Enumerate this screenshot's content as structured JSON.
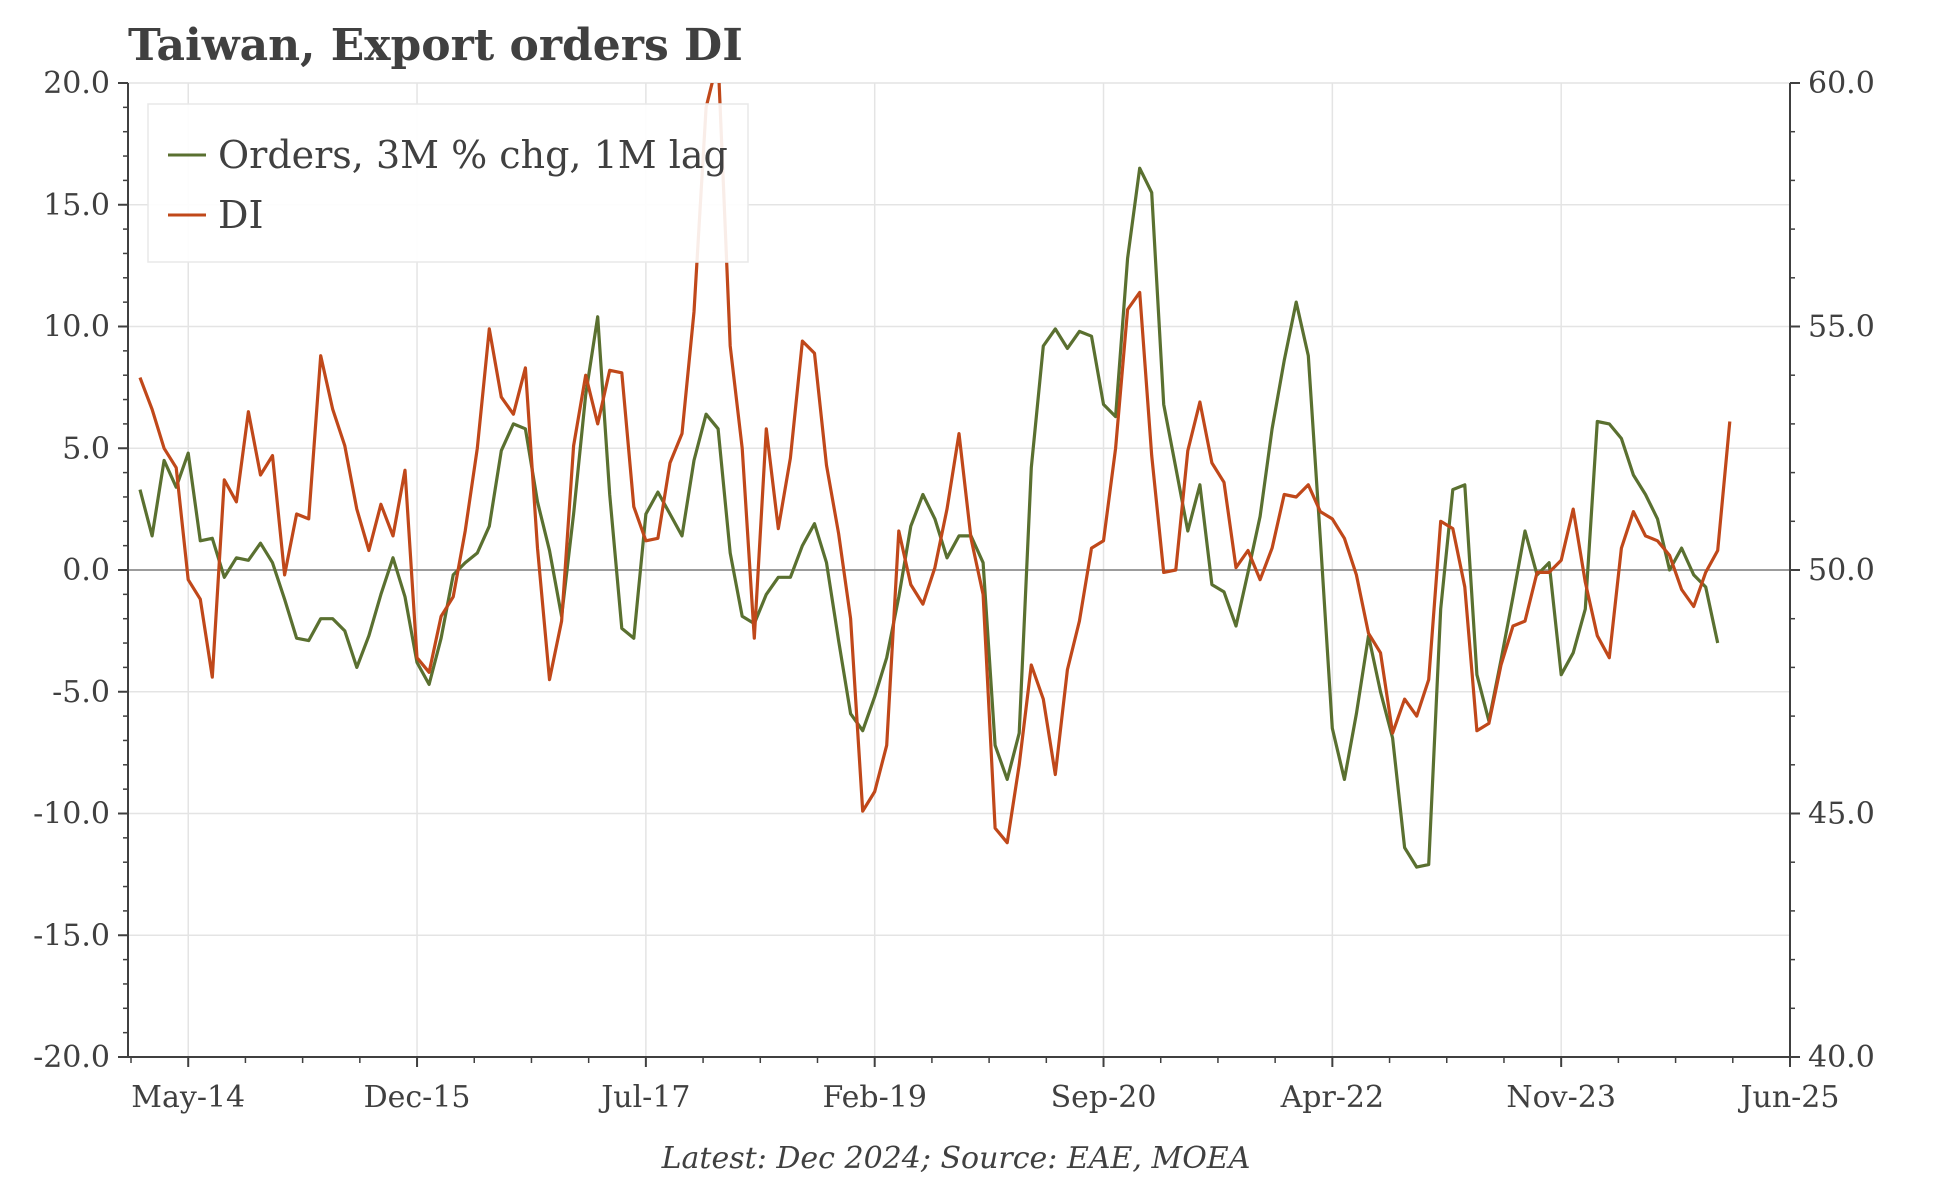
{
  "chart_data": {
    "type": "line",
    "title": "Taiwan, Export orders DI",
    "source_note": "Latest: Dec 2024; Source: EAE, MOEA",
    "x_start": "2013-12",
    "x_end": "2025-06",
    "x_tick_dates": [
      "2014-05",
      "2015-12",
      "2017-07",
      "2019-02",
      "2020-09",
      "2022-04",
      "2023-11",
      "2025-06"
    ],
    "x_tick_labels": [
      "May-14",
      "Dec-15",
      "Jul-17",
      "Feb-19",
      "Sep-20",
      "Apr-22",
      "Nov-23",
      "Jun-25"
    ],
    "y_left": {
      "lim": [
        -20,
        20
      ],
      "ticks": [
        -20,
        -15,
        -10,
        -5,
        0,
        5,
        10,
        15,
        20
      ],
      "tick_labels": [
        "-20.0",
        "-15.0",
        "-10.0",
        "-5.0",
        "0.0",
        "5.0",
        "10.0",
        "15.0",
        "20.0"
      ]
    },
    "y_right": {
      "lim": [
        40,
        60
      ],
      "ticks": [
        40,
        45,
        50,
        55,
        60
      ],
      "tick_labels": [
        "40.0",
        "45.0",
        "50.0",
        "55.0",
        "60.0"
      ]
    },
    "grid": true,
    "legend_position": "top-left",
    "colors": {
      "orders": "#5a7030",
      "di": "#c0481a",
      "zero_line": "#808080",
      "grid": "#e4e4e4"
    },
    "series": [
      {
        "name": "Orders, 3M % chg, 1M lag",
        "axis": "left",
        "start": "2014-01",
        "values": [
          3.3,
          1.4,
          4.5,
          3.4,
          4.8,
          1.2,
          1.3,
          -0.3,
          0.5,
          0.4,
          1.1,
          0.3,
          -1.2,
          -2.8,
          -2.9,
          -2.0,
          -2.0,
          -2.5,
          -4.0,
          -2.7,
          -1.0,
          0.5,
          -1.1,
          -3.8,
          -4.7,
          -2.8,
          -0.2,
          0.3,
          0.7,
          1.8,
          4.9,
          6.0,
          5.8,
          2.8,
          0.8,
          -1.9,
          2.3,
          7.2,
          10.4,
          3.1,
          -2.4,
          -2.8,
          2.3,
          3.2,
          2.3,
          1.4,
          4.5,
          6.4,
          5.8,
          0.7,
          -1.9,
          -2.2,
          -1.0,
          -0.3,
          -0.3,
          1.0,
          1.9,
          0.3,
          -2.9,
          -5.9,
          -6.6,
          -5.2,
          -3.6,
          -1.1,
          1.8,
          3.1,
          2.1,
          0.5,
          1.4,
          1.4,
          0.3,
          -7.2,
          -8.6,
          -6.7,
          4.2,
          9.2,
          9.9,
          9.1,
          9.8,
          9.6,
          6.8,
          6.3,
          12.8,
          16.5,
          15.5,
          6.8,
          4.2,
          1.6,
          3.5,
          -0.6,
          -0.9,
          -2.3,
          -0.1,
          2.2,
          5.8,
          8.6,
          11.0,
          8.8,
          1.3,
          -6.5,
          -8.6,
          -5.9,
          -2.7,
          -5.0,
          -6.9,
          -11.4,
          -12.2,
          -12.1,
          -1.6,
          3.3,
          3.5,
          -4.3,
          -6.2,
          -3.7,
          -1.1,
          1.6,
          -0.2,
          0.3,
          -4.3,
          -3.4,
          -1.6,
          6.1,
          6.0,
          5.4,
          3.9,
          3.1,
          2.1,
          0.0,
          0.9,
          -0.2,
          -0.7,
          -3.0
        ]
      },
      {
        "name": "DI",
        "axis": "right",
        "start": "2014-01",
        "values": [
          53.95,
          53.3,
          52.5,
          52.1,
          49.8,
          49.4,
          47.8,
          51.85,
          51.4,
          53.25,
          51.95,
          52.35,
          49.9,
          51.15,
          51.05,
          54.4,
          53.3,
          52.55,
          51.25,
          50.4,
          51.35,
          50.7,
          52.05,
          48.2,
          47.9,
          49.05,
          49.45,
          50.8,
          52.5,
          54.95,
          53.55,
          53.2,
          54.15,
          50.45,
          47.75,
          48.95,
          52.55,
          54.0,
          53.0,
          54.1,
          54.05,
          51.3,
          50.6,
          50.65,
          52.2,
          52.8,
          55.3,
          59.5,
          60.5,
          54.6,
          52.5,
          48.6,
          52.9,
          50.85,
          52.3,
          54.7,
          54.45,
          52.15,
          50.75,
          49.0,
          45.05,
          45.45,
          46.4,
          50.8,
          49.7,
          49.3,
          50.05,
          51.25,
          52.8,
          50.65,
          49.5,
          44.7,
          44.4,
          46.0,
          48.05,
          47.35,
          45.8,
          47.95,
          48.95,
          50.45,
          50.6,
          52.5,
          55.35,
          55.7,
          52.35,
          49.95,
          50.0,
          52.45,
          53.45,
          52.2,
          51.8,
          50.05,
          50.4,
          49.8,
          50.45,
          51.55,
          51.5,
          51.75,
          51.2,
          51.05,
          50.65,
          49.9,
          48.7,
          48.3,
          46.65,
          47.35,
          47.0,
          47.75,
          51.0,
          50.85,
          49.65,
          46.7,
          46.85,
          48.05,
          48.85,
          48.95,
          49.95,
          49.95,
          50.2,
          51.25,
          49.75,
          48.65,
          48.2,
          50.45,
          51.2,
          50.7,
          50.6,
          50.3,
          49.6,
          49.25,
          49.95,
          50.4,
          53.05
        ]
      }
    ]
  }
}
